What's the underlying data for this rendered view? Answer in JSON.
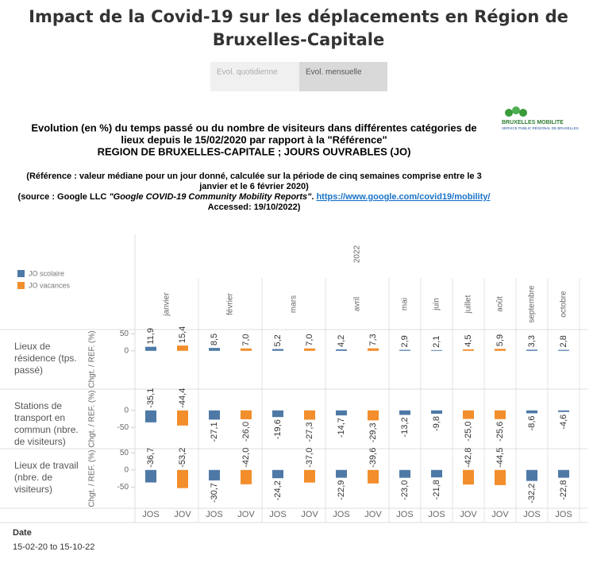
{
  "header": {
    "title_lines": [
      "Impact de la Covid-19 sur les déplacements en Région de",
      "Bruxelles-Capitale"
    ],
    "tabs": [
      "Evol. quotidienne",
      "Evol. mensuelle"
    ],
    "logo_name": "BRUXELLES MOBILITE",
    "logo_subtitle": "SERVICE PUBLIC RÉGIONAL DE BRUXELLES",
    "subtitle_lines": [
      "Evolution (en %) du temps passé ou du nombre de visiteurs dans différentes catégories de",
      "lieux depuis le 15/02/2020 par rapport à la \"Référence\"",
      "REGION DE BRUXELLES-CAPITALE ; JOURS OUVRABLES (JO)"
    ],
    "reference_lines": [
      "(Référence : valeur médiane pour un jour donné, calculée sur la période de cinq semaines comprise entre le 3",
      "janvier et le 6 février 2020)"
    ],
    "source_prefix": "(source : Google LLC ",
    "source_title": "\"Google COVID-19 Community Mobility Reports\"",
    "source_sep": ". ",
    "source_link": "https://www.google.com/covid19/mobility/",
    "accessed": "Accessed: 19/10/2022)"
  },
  "chart_data": {
    "type": "bar",
    "year": "2022",
    "groups": [
      {
        "label": "janvier",
        "size": 2
      },
      {
        "label": "février",
        "size": 2
      },
      {
        "label": "mars",
        "size": 2
      },
      {
        "label": "avril",
        "size": 2
      },
      {
        "label": "mai",
        "size": 1
      },
      {
        "label": "juin",
        "size": 1
      },
      {
        "label": "juillet",
        "size": 1
      },
      {
        "label": "août",
        "size": 1
      },
      {
        "label": "septembre",
        "size": 1
      },
      {
        "label": "octobre",
        "size": 1
      }
    ],
    "categories": [
      "JOS",
      "JOV",
      "JOS",
      "JOV",
      "JOS",
      "JOV",
      "JOS",
      "JOV",
      "JOS",
      "JOS",
      "JOV",
      "JOV",
      "JOS",
      "JOS"
    ],
    "series": [
      {
        "name": "JO scolaire",
        "color": "#4e79a7"
      },
      {
        "name": "JO vacances",
        "color": "#f28e2b"
      }
    ],
    "ylabel": "Chgt. / REF. (%)",
    "ylim": [
      -110,
      60
    ],
    "grid": true,
    "panels": [
      {
        "label_lines": [
          "Lieux de",
          "résidence (tps.",
          "passé)"
        ],
        "yticks": [
          50,
          0
        ],
        "series": [
          {
            "values": [
              11.9,
              null,
              8.5,
              null,
              5.2,
              null,
              4.2,
              null,
              2.9,
              2.1,
              null,
              null,
              3.3,
              2.8
            ],
            "value_labels": [
              "11,9",
              null,
              "8,5",
              null,
              "5,2",
              null,
              "4,2",
              null,
              "2,9",
              "2,1",
              null,
              null,
              "3,3",
              "2,8"
            ]
          },
          {
            "values": [
              null,
              15.4,
              null,
              7.0,
              null,
              7.0,
              null,
              7.3,
              null,
              null,
              4.5,
              5.9,
              null,
              null
            ],
            "value_labels": [
              null,
              "15,4",
              null,
              "7,0",
              null,
              "7,0",
              null,
              "7,3",
              null,
              null,
              "4,5",
              "5,9",
              null,
              null
            ]
          }
        ]
      },
      {
        "label_lines": [
          "Stations de",
          "transport en",
          "commun (nbre.",
          "de visiteurs)"
        ],
        "yticks": [
          0,
          -50
        ],
        "series": [
          {
            "values": [
              -35.1,
              null,
              -27.1,
              null,
              -19.6,
              null,
              -14.7,
              null,
              -13.2,
              -9.8,
              null,
              null,
              -8.6,
              -4.6
            ],
            "value_labels": [
              "-35,1",
              null,
              "-27,1",
              null,
              "-19,6",
              null,
              "-14,7",
              null,
              "-13,2",
              "-9,8",
              null,
              null,
              "-8,6",
              "-4,6"
            ]
          },
          {
            "values": [
              null,
              -44.4,
              null,
              -26.0,
              null,
              -27.3,
              null,
              -29.3,
              null,
              null,
              -25.0,
              -25.6,
              null,
              null
            ],
            "value_labels": [
              null,
              "-44,4",
              null,
              "-26,0",
              null,
              "-27,3",
              null,
              "-29,3",
              null,
              null,
              "-25,0",
              "-25,6",
              null,
              null
            ]
          }
        ]
      },
      {
        "label_lines": [
          "Lieux de travail",
          "(nbre. de",
          "visiteurs)"
        ],
        "yticks": [
          50,
          0,
          -50
        ],
        "series": [
          {
            "values": [
              -36.7,
              null,
              -30.7,
              null,
              -24.2,
              null,
              -22.9,
              null,
              -23.0,
              -21.8,
              null,
              null,
              -32.2,
              -22.8
            ],
            "value_labels": [
              "-36,7",
              null,
              "-30,7",
              null,
              "-24,2",
              null,
              "-22,9",
              null,
              "-23,0",
              "-21,8",
              null,
              null,
              "-32,2",
              "-22,8"
            ]
          },
          {
            "values": [
              null,
              -53.2,
              null,
              -42.0,
              null,
              -37.0,
              null,
              -39.6,
              null,
              null,
              -42.8,
              -44.5,
              null,
              null
            ],
            "value_labels": [
              null,
              "-53,2",
              null,
              "-42,0",
              null,
              "-37,0",
              null,
              "-39,6",
              null,
              null,
              "-42,8",
              "-44,5",
              null,
              null
            ]
          }
        ]
      }
    ]
  },
  "footer": {
    "label": "Date",
    "value": "15-02-20 to 15-10-22"
  }
}
